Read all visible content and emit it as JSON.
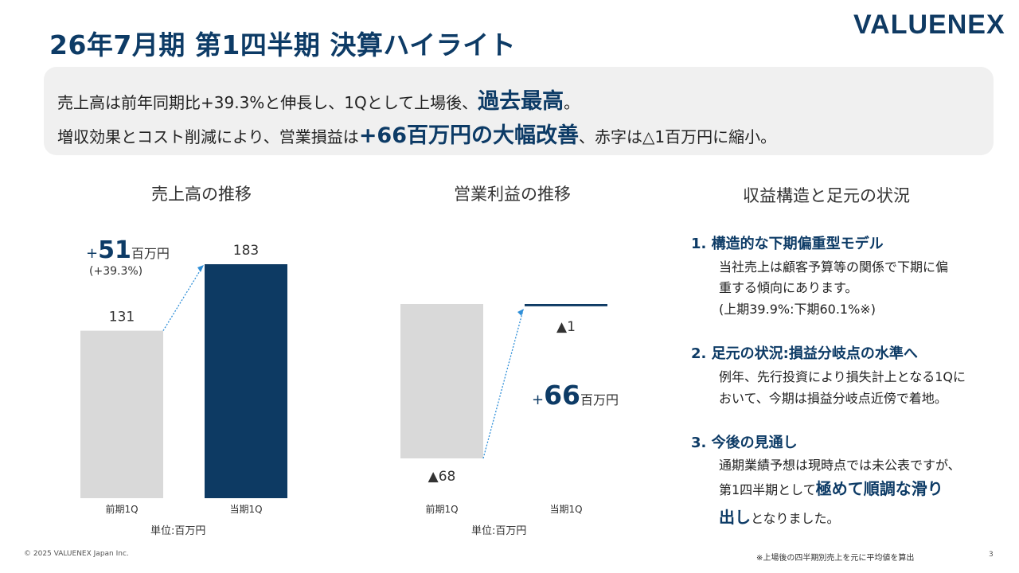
{
  "title": "26年7月期 第1四半期 決算ハイライト",
  "logo_text": "VALUENEX",
  "highlight": {
    "line1_pre": "売上高は前年同期比+39.3%と伸長し、1Qとして上場後、",
    "line1_em": "過去最高",
    "line1_post": "。",
    "line2_pre": "増収効果とコスト削減により、営業損益は",
    "line2_em": "+66百万円の大幅改善",
    "line2_post": "、赤字は△1百万円に縮小。"
  },
  "sales_chart": {
    "heading": "売上高の推移",
    "increase_prefix": "+",
    "increase_value": "51",
    "increase_unit": "百万円",
    "increase_pct": "(+39.3%)",
    "unit_note": "単位:百万円"
  },
  "profit_chart": {
    "heading": "営業利益の推移",
    "increase_prefix": "+",
    "increase_value": "66",
    "increase_unit": "百万円",
    "unit_note": "単位:百万円"
  },
  "chart_data": [
    {
      "type": "bar",
      "title": "売上高の推移",
      "categories": [
        "前期1Q",
        "当期1Q"
      ],
      "values": [
        131,
        183
      ],
      "value_labels": [
        "131",
        "183"
      ],
      "colors": [
        "#d9d9d9",
        "#0d3a63"
      ],
      "unit": "百万円",
      "ylim": [
        0,
        183
      ]
    },
    {
      "type": "bar",
      "title": "営業利益の推移",
      "categories": [
        "前期1Q",
        "当期1Q"
      ],
      "values": [
        -68,
        -1
      ],
      "value_labels": [
        "▲68",
        "▲1"
      ],
      "colors": [
        "#d9d9d9",
        "#0d3a63"
      ],
      "unit": "百万円",
      "ylim": [
        -68,
        0
      ]
    }
  ],
  "structure": {
    "heading": "収益構造と足元の状況",
    "items": [
      {
        "head": "1. 構造的な下期偏重型モデル",
        "lines": [
          "当社売上は顧客予算等の関係で下期に偏",
          "重する傾向にあります。",
          "(上期39.9%:下期60.1%※)"
        ]
      },
      {
        "head": "2. 足元の状況:損益分岐点の水準へ",
        "lines": [
          "例年、先行投資により損失計上となる1Qに",
          "おいて、今期は損益分岐点近傍で着地。"
        ]
      },
      {
        "head": "3. 今後の見通し",
        "lines": [
          "通期業績予想は現時点では未公表ですが、"
        ],
        "line_pre": "第1四半期として",
        "line_em": "極めて順調な滑り",
        "last_em": "出し",
        "last_post": "となりました。"
      }
    ]
  },
  "footer": {
    "copyright": "© 2025 VALUENEX Japan Inc.",
    "note": "※上場後の四半期別売上を元に平均値を算出",
    "page": "3"
  }
}
